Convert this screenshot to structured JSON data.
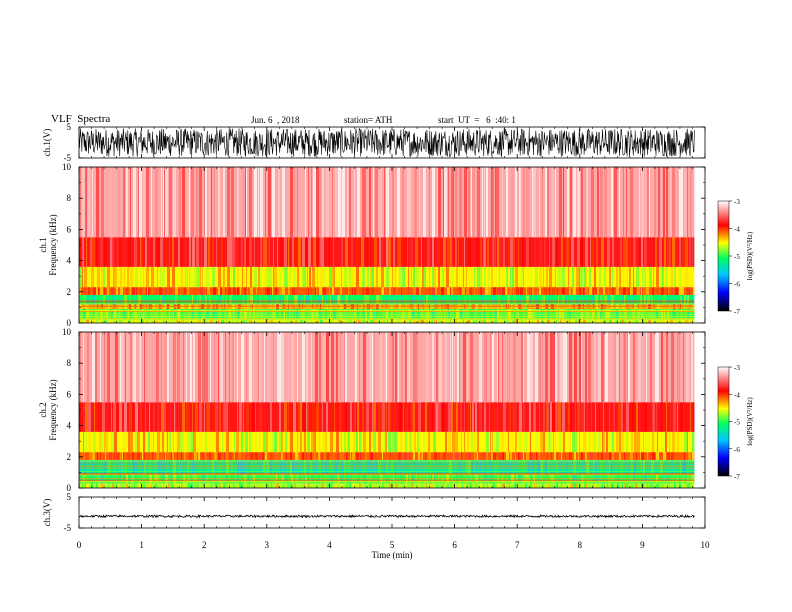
{
  "header": {
    "title": "VLF  Spectra",
    "date": "Jun. 6  , 2018",
    "station": "station= ATH",
    "start": "start  UT  =   6  :40: 1"
  },
  "chart_data": [
    {
      "type": "line",
      "name": "ch1-waveform",
      "ylabel": "ch.1(V)",
      "ylim": [
        -5,
        5
      ],
      "yticks": [
        "5",
        "-5"
      ],
      "xlim": [
        0,
        10
      ],
      "data_xmax": 9.83,
      "amplitude": 4.6
    },
    {
      "type": "heatmap",
      "name": "ch1-spectrogram",
      "ylabel_top": "ch.1",
      "ylabel": "Frequency  (kHz)",
      "ylim": [
        0,
        10
      ],
      "yticks": [
        "0",
        "2",
        "4",
        "6",
        "8",
        "10"
      ],
      "xlim": [
        0,
        10
      ],
      "data_xmax": 9.83,
      "bands": [
        {
          "f0": 0.0,
          "f1": 0.3,
          "level": -4.6
        },
        {
          "f0": 0.3,
          "f1": 0.9,
          "level": -4.9
        },
        {
          "f0": 0.9,
          "f1": 1.2,
          "level": -4.3
        },
        {
          "f0": 1.2,
          "f1": 1.8,
          "level": -5.1
        },
        {
          "f0": 1.8,
          "f1": 2.3,
          "level": -4.1
        },
        {
          "f0": 2.3,
          "f1": 3.6,
          "level": -4.5
        },
        {
          "f0": 3.6,
          "f1": 5.5,
          "level": -3.8
        },
        {
          "f0": 5.5,
          "f1": 10.0,
          "level": -3.3
        }
      ]
    },
    {
      "type": "heatmap",
      "name": "ch2-spectrogram",
      "ylabel_top": "ch.2",
      "ylabel": "Frequency  (kHz)",
      "ylim": [
        0,
        10
      ],
      "yticks": [
        "0",
        "2",
        "4",
        "6",
        "8",
        "10"
      ],
      "xlim": [
        0,
        10
      ],
      "data_xmax": 9.83,
      "bands": [
        {
          "f0": 0.0,
          "f1": 0.3,
          "level": -4.7
        },
        {
          "f0": 0.3,
          "f1": 0.9,
          "level": -5.0
        },
        {
          "f0": 0.9,
          "f1": 1.8,
          "level": -5.3
        },
        {
          "f0": 1.8,
          "f1": 2.3,
          "level": -4.1
        },
        {
          "f0": 2.3,
          "f1": 3.6,
          "level": -4.5
        },
        {
          "f0": 3.6,
          "f1": 5.5,
          "level": -3.8
        },
        {
          "f0": 5.5,
          "f1": 10.0,
          "level": -3.3
        }
      ]
    },
    {
      "type": "line",
      "name": "ch3-waveform",
      "ylabel": "ch.3(V)",
      "ylim": [
        -5,
        5
      ],
      "yticks": [
        "5",
        "-5"
      ],
      "xlim": [
        0,
        10
      ],
      "data_xmax": 9.83,
      "offset": -1.2,
      "amplitude": 0.35
    }
  ],
  "xaxis": {
    "label": "Time  (min)",
    "ticks": [
      "0",
      "1",
      "2",
      "3",
      "4",
      "5",
      "6",
      "7",
      "8",
      "9",
      "10"
    ]
  },
  "colorbar": {
    "label": "log(PSD)(V²/Hz)",
    "range": [
      -7,
      -3
    ],
    "ticks": [
      "-3",
      "-4",
      "-5",
      "-6",
      "-7"
    ],
    "colors": [
      "#000000",
      "#0000ff",
      "#00c8ff",
      "#00ff60",
      "#ffff00",
      "#ff0000",
      "#ffffff"
    ]
  }
}
